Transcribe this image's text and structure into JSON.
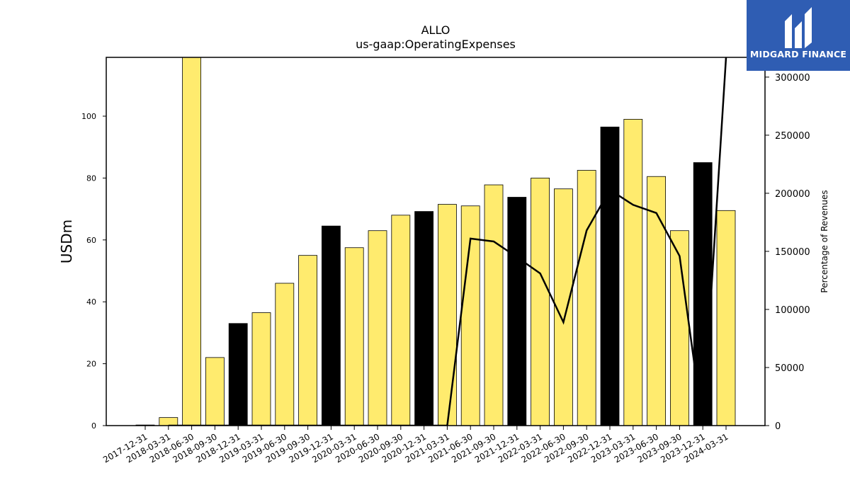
{
  "chart_data": {
    "type": "bar",
    "title": "ALLO",
    "subtitle": "us-gaap:OperatingExpenses",
    "ylabel": "USDm",
    "ylabel_right": "Percentage of Revenues",
    "ylim": [
      0,
      119
    ],
    "ylim_right": [
      0,
      317000
    ],
    "yticks": [
      "0",
      "20",
      "40",
      "60",
      "80",
      "100"
    ],
    "yticks_right": [
      "0",
      "50000",
      "100000",
      "150000",
      "200000",
      "250000",
      "300000"
    ],
    "categories": [
      "2017-12-31",
      "2018-03-31",
      "2018-06-30",
      "2018-09-30",
      "2018-12-31",
      "2019-03-31",
      "2019-06-30",
      "2019-09-30",
      "2019-12-31",
      "2020-03-31",
      "2020-06-30",
      "2020-09-30",
      "2020-12-31",
      "2021-03-31",
      "2021-06-30",
      "2021-09-30",
      "2021-12-31",
      "2022-03-31",
      "2022-06-30",
      "2022-09-30",
      "2022-12-31",
      "2023-03-31",
      "2023-06-30",
      "2023-09-30",
      "2023-12-31",
      "2024-03-31"
    ],
    "series": [
      {
        "type": "bar",
        "values": [
          0.2,
          2.6,
          119,
          22,
          33,
          36.5,
          46,
          55,
          64.5,
          57.5,
          63,
          68,
          69.2,
          71.5,
          71,
          77.8,
          73.8,
          80,
          76.5,
          82.5,
          96.5,
          99,
          80.5,
          63,
          85,
          69.5
        ],
        "colors": [
          "#ffeb6e",
          "#ffeb6e",
          "#ffeb6e",
          "#ffeb6e",
          "#000000",
          "#ffeb6e",
          "#ffeb6e",
          "#ffeb6e",
          "#000000",
          "#ffeb6e",
          "#ffeb6e",
          "#ffeb6e",
          "#000000",
          "#ffeb6e",
          "#ffeb6e",
          "#ffeb6e",
          "#000000",
          "#ffeb6e",
          "#ffeb6e",
          "#ffeb6e",
          "#000000",
          "#ffeb6e",
          "#ffeb6e",
          "#ffeb6e",
          "#000000",
          "#ffeb6e"
        ]
      },
      {
        "type": "line",
        "axis": "right",
        "color": "#000000",
        "values": [
          null,
          0,
          0,
          0,
          0,
          0,
          0,
          0,
          0,
          0,
          0,
          0,
          0,
          0,
          161000,
          158500,
          145000,
          131000,
          89000,
          168000,
          203000,
          190000,
          183000,
          146000,
          0,
          317000
        ]
      }
    ],
    "grid": false,
    "legend": "none"
  },
  "logo": {
    "text": "MIDGARD FINANCE",
    "icon": "midgard-logo-icon",
    "color": "#2f5db3"
  }
}
